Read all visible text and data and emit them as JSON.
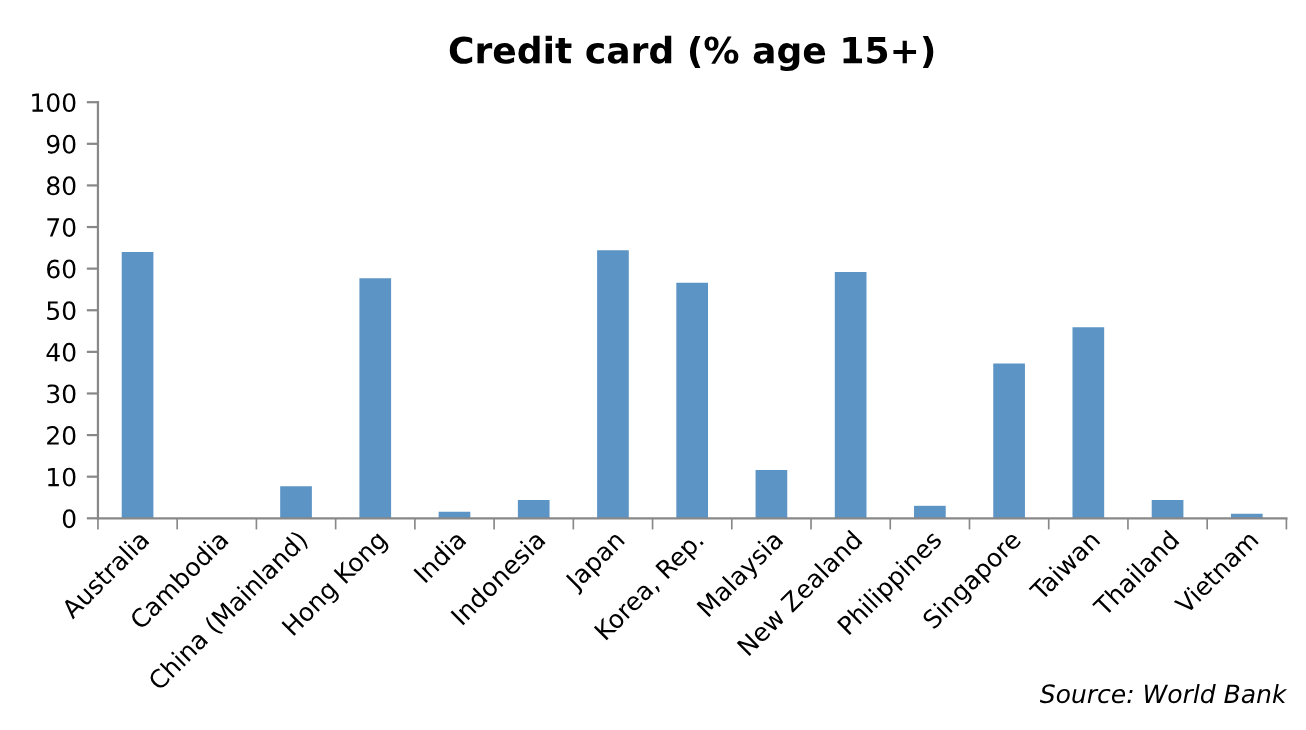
{
  "chart_data": {
    "type": "bar",
    "title": "Credit card (% age 15+)",
    "categories": [
      "Australia",
      "Cambodia",
      "China (Mainland)",
      "Hong Kong",
      "India",
      "Indonesia",
      "Japan",
      "Korea, Rep.",
      "Malaysia",
      "New Zealand",
      "Philippines",
      "Singapore",
      "Taiwan",
      "Thailand",
      "Vietnam"
    ],
    "values": [
      64,
      0,
      7.7,
      57.7,
      1.6,
      4.4,
      64.4,
      56.6,
      11.6,
      59.2,
      3.0,
      37.2,
      45.9,
      4.4,
      1.1
    ],
    "color": "#5b94c5",
    "ylim": [
      0,
      100
    ],
    "yticks": [
      0,
      10,
      20,
      30,
      40,
      50,
      60,
      70,
      80,
      90,
      100
    ],
    "grid": false,
    "legend": false,
    "annotations": [
      "Source: World Bank"
    ]
  }
}
